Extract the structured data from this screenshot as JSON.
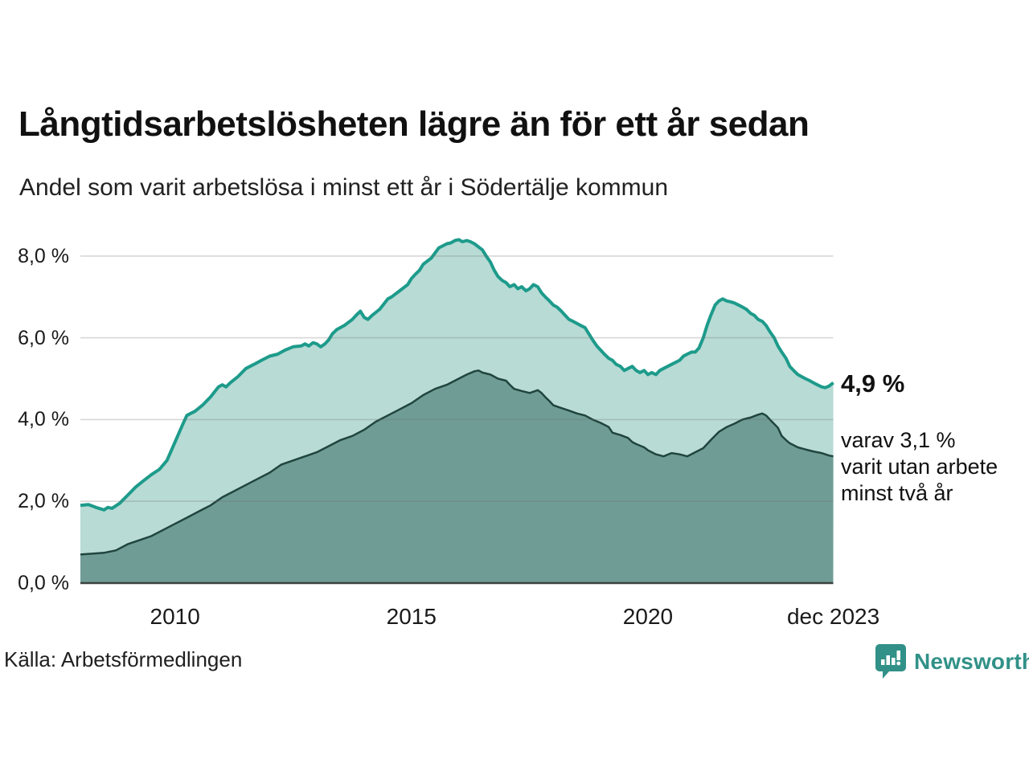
{
  "header": {
    "title": "Långtidsarbetslösheten lägre än för ett år sedan",
    "subtitle": "Andel som varit arbetslösa i minst ett år i Södertälje kommun"
  },
  "annotation": {
    "value_label": "4,9 %",
    "detail_lines": [
      "varav 3,1 %",
      "varit utan arbete",
      "minst två år"
    ]
  },
  "footer": {
    "source": "Källa: Arbetsförmedlingen",
    "brand": "Newsworthy"
  },
  "colors": {
    "series1_line": "#1d9b8b",
    "series1_fill": "#b8dbd5",
    "series2_line": "#20453e",
    "series2_fill": "#6f9d96",
    "gridline": "#6f6f6f",
    "axis_line": "#3a413f",
    "brand_teal": "#319188"
  },
  "chart_data": {
    "type": "area",
    "title": "Långtidsarbetslösheten lägre än för ett år sedan",
    "subtitle": "Andel som varit arbetslösa i minst ett år i Södertälje kommun",
    "unit": "%",
    "grid": true,
    "legend": "none",
    "x_range": [
      2008.0,
      2023.92
    ],
    "ylim": [
      0,
      8.8
    ],
    "yticks": [
      {
        "value": 0,
        "label": "0,0 %"
      },
      {
        "value": 2,
        "label": "2,0 %"
      },
      {
        "value": 4,
        "label": "4,0 %"
      },
      {
        "value": 6,
        "label": "6,0 %"
      },
      {
        "value": 8,
        "label": "8,0 %"
      }
    ],
    "xticks": [
      {
        "value": 2010,
        "label": "2010"
      },
      {
        "value": 2015,
        "label": "2015"
      },
      {
        "value": 2020,
        "label": "2020"
      },
      {
        "value": 2023.92,
        "label": "dec 2023"
      }
    ],
    "series": [
      {
        "name": "Arbetslösa minst ett år",
        "end_label": "4,9 %",
        "line_color": "#1d9b8b",
        "fill_color": "#b8dbd5",
        "points": [
          [
            2008.0,
            1.9
          ],
          [
            2008.17,
            1.92
          ],
          [
            2008.33,
            1.85
          ],
          [
            2008.5,
            1.79
          ],
          [
            2008.58,
            1.85
          ],
          [
            2008.67,
            1.83
          ],
          [
            2008.83,
            1.95
          ],
          [
            2009.0,
            2.15
          ],
          [
            2009.17,
            2.35
          ],
          [
            2009.33,
            2.5
          ],
          [
            2009.5,
            2.65
          ],
          [
            2009.67,
            2.78
          ],
          [
            2009.83,
            3.0
          ],
          [
            2010.0,
            3.45
          ],
          [
            2010.17,
            3.9
          ],
          [
            2010.25,
            4.1
          ],
          [
            2010.33,
            4.15
          ],
          [
            2010.42,
            4.2
          ],
          [
            2010.58,
            4.35
          ],
          [
            2010.75,
            4.55
          ],
          [
            2010.92,
            4.8
          ],
          [
            2011.0,
            4.85
          ],
          [
            2011.08,
            4.8
          ],
          [
            2011.17,
            4.9
          ],
          [
            2011.33,
            5.05
          ],
          [
            2011.5,
            5.25
          ],
          [
            2011.67,
            5.35
          ],
          [
            2011.83,
            5.45
          ],
          [
            2012.0,
            5.55
          ],
          [
            2012.17,
            5.6
          ],
          [
            2012.33,
            5.7
          ],
          [
            2012.5,
            5.78
          ],
          [
            2012.67,
            5.8
          ],
          [
            2012.75,
            5.85
          ],
          [
            2012.83,
            5.8
          ],
          [
            2012.92,
            5.88
          ],
          [
            2013.0,
            5.85
          ],
          [
            2013.08,
            5.78
          ],
          [
            2013.17,
            5.85
          ],
          [
            2013.25,
            5.95
          ],
          [
            2013.33,
            6.1
          ],
          [
            2013.42,
            6.2
          ],
          [
            2013.58,
            6.3
          ],
          [
            2013.75,
            6.45
          ],
          [
            2013.83,
            6.55
          ],
          [
            2013.92,
            6.65
          ],
          [
            2014.0,
            6.5
          ],
          [
            2014.08,
            6.45
          ],
          [
            2014.17,
            6.55
          ],
          [
            2014.33,
            6.7
          ],
          [
            2014.5,
            6.95
          ],
          [
            2014.58,
            7.0
          ],
          [
            2014.75,
            7.15
          ],
          [
            2014.92,
            7.3
          ],
          [
            2015.0,
            7.45
          ],
          [
            2015.08,
            7.55
          ],
          [
            2015.17,
            7.65
          ],
          [
            2015.25,
            7.8
          ],
          [
            2015.42,
            7.95
          ],
          [
            2015.58,
            8.2
          ],
          [
            2015.75,
            8.3
          ],
          [
            2015.83,
            8.32
          ],
          [
            2015.92,
            8.38
          ],
          [
            2016.0,
            8.4
          ],
          [
            2016.08,
            8.35
          ],
          [
            2016.17,
            8.38
          ],
          [
            2016.25,
            8.35
          ],
          [
            2016.33,
            8.3
          ],
          [
            2016.5,
            8.15
          ],
          [
            2016.58,
            8.0
          ],
          [
            2016.67,
            7.85
          ],
          [
            2016.75,
            7.65
          ],
          [
            2016.83,
            7.5
          ],
          [
            2016.92,
            7.4
          ],
          [
            2017.0,
            7.35
          ],
          [
            2017.08,
            7.25
          ],
          [
            2017.17,
            7.3
          ],
          [
            2017.25,
            7.2
          ],
          [
            2017.33,
            7.25
          ],
          [
            2017.42,
            7.15
          ],
          [
            2017.5,
            7.2
          ],
          [
            2017.58,
            7.3
          ],
          [
            2017.67,
            7.25
          ],
          [
            2017.75,
            7.1
          ],
          [
            2017.83,
            7.0
          ],
          [
            2017.92,
            6.9
          ],
          [
            2018.0,
            6.8
          ],
          [
            2018.08,
            6.75
          ],
          [
            2018.17,
            6.65
          ],
          [
            2018.25,
            6.55
          ],
          [
            2018.33,
            6.45
          ],
          [
            2018.42,
            6.4
          ],
          [
            2018.5,
            6.35
          ],
          [
            2018.58,
            6.3
          ],
          [
            2018.67,
            6.25
          ],
          [
            2018.75,
            6.1
          ],
          [
            2018.83,
            5.95
          ],
          [
            2018.92,
            5.8
          ],
          [
            2019.0,
            5.7
          ],
          [
            2019.08,
            5.6
          ],
          [
            2019.17,
            5.5
          ],
          [
            2019.25,
            5.45
          ],
          [
            2019.33,
            5.35
          ],
          [
            2019.42,
            5.3
          ],
          [
            2019.5,
            5.2
          ],
          [
            2019.58,
            5.25
          ],
          [
            2019.67,
            5.3
          ],
          [
            2019.75,
            5.2
          ],
          [
            2019.83,
            5.15
          ],
          [
            2019.92,
            5.2
          ],
          [
            2020.0,
            5.1
          ],
          [
            2020.08,
            5.15
          ],
          [
            2020.17,
            5.1
          ],
          [
            2020.25,
            5.2
          ],
          [
            2020.33,
            5.25
          ],
          [
            2020.5,
            5.35
          ],
          [
            2020.67,
            5.45
          ],
          [
            2020.75,
            5.55
          ],
          [
            2020.83,
            5.6
          ],
          [
            2020.92,
            5.65
          ],
          [
            2021.0,
            5.65
          ],
          [
            2021.08,
            5.75
          ],
          [
            2021.17,
            6.0
          ],
          [
            2021.25,
            6.3
          ],
          [
            2021.33,
            6.55
          ],
          [
            2021.42,
            6.8
          ],
          [
            2021.5,
            6.9
          ],
          [
            2021.58,
            6.95
          ],
          [
            2021.67,
            6.9
          ],
          [
            2021.75,
            6.88
          ],
          [
            2021.83,
            6.85
          ],
          [
            2021.92,
            6.8
          ],
          [
            2022.0,
            6.75
          ],
          [
            2022.08,
            6.7
          ],
          [
            2022.17,
            6.6
          ],
          [
            2022.25,
            6.55
          ],
          [
            2022.33,
            6.45
          ],
          [
            2022.42,
            6.4
          ],
          [
            2022.5,
            6.3
          ],
          [
            2022.58,
            6.15
          ],
          [
            2022.67,
            6.0
          ],
          [
            2022.75,
            5.8
          ],
          [
            2022.83,
            5.65
          ],
          [
            2022.92,
            5.5
          ],
          [
            2023.0,
            5.3
          ],
          [
            2023.08,
            5.2
          ],
          [
            2023.17,
            5.1
          ],
          [
            2023.25,
            5.05
          ],
          [
            2023.33,
            5.0
          ],
          [
            2023.42,
            4.95
          ],
          [
            2023.5,
            4.9
          ],
          [
            2023.58,
            4.85
          ],
          [
            2023.67,
            4.8
          ],
          [
            2023.75,
            4.78
          ],
          [
            2023.83,
            4.82
          ],
          [
            2023.92,
            4.9
          ]
        ]
      },
      {
        "name": "Varav utan arbete minst två år",
        "end_label": "3,1 %",
        "line_color": "#20453e",
        "fill_color": "#6f9d96",
        "points": [
          [
            2008.0,
            0.7
          ],
          [
            2008.25,
            0.72
          ],
          [
            2008.5,
            0.74
          ],
          [
            2008.75,
            0.8
          ],
          [
            2009.0,
            0.95
          ],
          [
            2009.25,
            1.05
          ],
          [
            2009.5,
            1.15
          ],
          [
            2009.75,
            1.3
          ],
          [
            2010.0,
            1.45
          ],
          [
            2010.25,
            1.6
          ],
          [
            2010.5,
            1.75
          ],
          [
            2010.75,
            1.9
          ],
          [
            2011.0,
            2.1
          ],
          [
            2011.25,
            2.25
          ],
          [
            2011.5,
            2.4
          ],
          [
            2011.75,
            2.55
          ],
          [
            2012.0,
            2.7
          ],
          [
            2012.25,
            2.9
          ],
          [
            2012.5,
            3.0
          ],
          [
            2012.75,
            3.1
          ],
          [
            2013.0,
            3.2
          ],
          [
            2013.25,
            3.35
          ],
          [
            2013.5,
            3.5
          ],
          [
            2013.75,
            3.6
          ],
          [
            2014.0,
            3.75
          ],
          [
            2014.25,
            3.95
          ],
          [
            2014.5,
            4.1
          ],
          [
            2014.75,
            4.25
          ],
          [
            2015.0,
            4.4
          ],
          [
            2015.25,
            4.6
          ],
          [
            2015.5,
            4.75
          ],
          [
            2015.75,
            4.85
          ],
          [
            2016.0,
            5.0
          ],
          [
            2016.17,
            5.1
          ],
          [
            2016.33,
            5.18
          ],
          [
            2016.42,
            5.2
          ],
          [
            2016.5,
            5.15
          ],
          [
            2016.67,
            5.1
          ],
          [
            2016.83,
            5.0
          ],
          [
            2017.0,
            4.95
          ],
          [
            2017.08,
            4.85
          ],
          [
            2017.17,
            4.75
          ],
          [
            2017.33,
            4.7
          ],
          [
            2017.5,
            4.65
          ],
          [
            2017.67,
            4.72
          ],
          [
            2017.75,
            4.65
          ],
          [
            2017.83,
            4.55
          ],
          [
            2017.92,
            4.45
          ],
          [
            2018.0,
            4.35
          ],
          [
            2018.17,
            4.28
          ],
          [
            2018.33,
            4.22
          ],
          [
            2018.5,
            4.15
          ],
          [
            2018.67,
            4.1
          ],
          [
            2018.83,
            4.0
          ],
          [
            2019.0,
            3.92
          ],
          [
            2019.17,
            3.82
          ],
          [
            2019.25,
            3.68
          ],
          [
            2019.42,
            3.62
          ],
          [
            2019.58,
            3.55
          ],
          [
            2019.67,
            3.45
          ],
          [
            2019.75,
            3.4
          ],
          [
            2019.92,
            3.32
          ],
          [
            2020.0,
            3.25
          ],
          [
            2020.17,
            3.15
          ],
          [
            2020.33,
            3.1
          ],
          [
            2020.5,
            3.18
          ],
          [
            2020.67,
            3.15
          ],
          [
            2020.83,
            3.1
          ],
          [
            2021.0,
            3.2
          ],
          [
            2021.17,
            3.3
          ],
          [
            2021.33,
            3.5
          ],
          [
            2021.5,
            3.7
          ],
          [
            2021.67,
            3.82
          ],
          [
            2021.83,
            3.9
          ],
          [
            2022.0,
            4.0
          ],
          [
            2022.17,
            4.05
          ],
          [
            2022.33,
            4.12
          ],
          [
            2022.42,
            4.15
          ],
          [
            2022.5,
            4.1
          ],
          [
            2022.58,
            4.0
          ],
          [
            2022.75,
            3.8
          ],
          [
            2022.83,
            3.6
          ],
          [
            2022.92,
            3.5
          ],
          [
            2023.0,
            3.42
          ],
          [
            2023.17,
            3.32
          ],
          [
            2023.33,
            3.27
          ],
          [
            2023.5,
            3.22
          ],
          [
            2023.67,
            3.18
          ],
          [
            2023.83,
            3.12
          ],
          [
            2023.92,
            3.1
          ]
        ]
      }
    ]
  }
}
